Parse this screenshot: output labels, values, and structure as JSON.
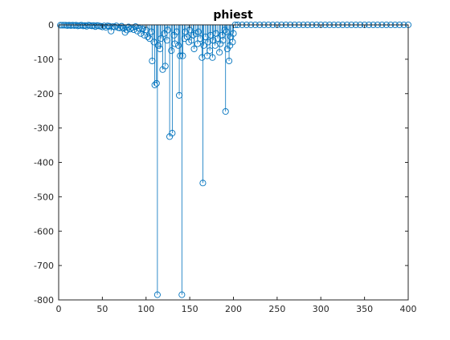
{
  "chart_data": {
    "type": "stem",
    "title": "phiest",
    "xlabel": "",
    "ylabel": "",
    "xlim": [
      0,
      400
    ],
    "ylim": [
      -800,
      0
    ],
    "xticks": [
      0,
      50,
      100,
      150,
      200,
      250,
      300,
      350,
      400
    ],
    "yticks": [
      0,
      -100,
      -200,
      -300,
      -400,
      -500,
      -600,
      -700,
      -800
    ],
    "grid": false,
    "colors": {
      "series": "#0072bd",
      "axes": "#262626"
    },
    "series": [
      {
        "points": [
          [
            2,
            -1
          ],
          [
            4,
            -1
          ],
          [
            6,
            -1
          ],
          [
            8,
            -1
          ],
          [
            10,
            -2
          ],
          [
            12,
            -1
          ],
          [
            14,
            -2
          ],
          [
            16,
            -1
          ],
          [
            18,
            -2
          ],
          [
            20,
            -1
          ],
          [
            22,
            -3
          ],
          [
            24,
            -2
          ],
          [
            26,
            -1
          ],
          [
            28,
            -3
          ],
          [
            30,
            -2
          ],
          [
            32,
            -4
          ],
          [
            34,
            -1
          ],
          [
            36,
            -2
          ],
          [
            38,
            -3
          ],
          [
            40,
            -2
          ],
          [
            42,
            -5
          ],
          [
            44,
            -2
          ],
          [
            46,
            -3
          ],
          [
            48,
            -4
          ],
          [
            50,
            -6
          ],
          [
            52,
            -3
          ],
          [
            54,
            -7
          ],
          [
            56,
            -3
          ],
          [
            58,
            -4
          ],
          [
            60,
            -18
          ],
          [
            62,
            -5
          ],
          [
            64,
            -6
          ],
          [
            66,
            -3
          ],
          [
            68,
            -8
          ],
          [
            70,
            -9
          ],
          [
            72,
            -4
          ],
          [
            74,
            -10
          ],
          [
            76,
            -22
          ],
          [
            78,
            -15
          ],
          [
            80,
            -6
          ],
          [
            82,
            -12
          ],
          [
            84,
            -8
          ],
          [
            86,
            -14
          ],
          [
            88,
            -5
          ],
          [
            90,
            -18
          ],
          [
            92,
            -10
          ],
          [
            94,
            -25
          ],
          [
            96,
            -12
          ],
          [
            98,
            -30
          ],
          [
            100,
            -15
          ],
          [
            102,
            -35
          ],
          [
            104,
            -40
          ],
          [
            106,
            -20
          ],
          [
            107,
            -105
          ],
          [
            109,
            -50
          ],
          [
            110,
            -175
          ],
          [
            112,
            -170
          ],
          [
            113,
            -785
          ],
          [
            114,
            -60
          ],
          [
            116,
            -70
          ],
          [
            117,
            -40
          ],
          [
            119,
            -130
          ],
          [
            121,
            -25
          ],
          [
            122,
            -120
          ],
          [
            124,
            -45
          ],
          [
            125,
            -15
          ],
          [
            127,
            -325
          ],
          [
            129,
            -75
          ],
          [
            130,
            -315
          ],
          [
            132,
            -30
          ],
          [
            133,
            -55
          ],
          [
            135,
            -20
          ],
          [
            137,
            -60
          ],
          [
            138,
            -205
          ],
          [
            139,
            -90
          ],
          [
            141,
            -785
          ],
          [
            142,
            -90
          ],
          [
            144,
            -40
          ],
          [
            145,
            -20
          ],
          [
            147,
            -35
          ],
          [
            149,
            -50
          ],
          [
            150,
            -15
          ],
          [
            152,
            -45
          ],
          [
            154,
            -30
          ],
          [
            155,
            -70
          ],
          [
            157,
            -25
          ],
          [
            159,
            -55
          ],
          [
            160,
            -20
          ],
          [
            162,
            -40
          ],
          [
            164,
            -95
          ],
          [
            165,
            -460
          ],
          [
            166,
            -60
          ],
          [
            168,
            -35
          ],
          [
            170,
            -90
          ],
          [
            171,
            -50
          ],
          [
            173,
            -75
          ],
          [
            174,
            -30
          ],
          [
            176,
            -95
          ],
          [
            177,
            -45
          ],
          [
            179,
            -60
          ],
          [
            180,
            -25
          ],
          [
            182,
            -40
          ],
          [
            184,
            -80
          ],
          [
            185,
            -55
          ],
          [
            187,
            -30
          ],
          [
            188,
            -45
          ],
          [
            190,
            -15
          ],
          [
            191,
            -252
          ],
          [
            192,
            -20
          ],
          [
            193,
            -70
          ],
          [
            195,
            -105
          ],
          [
            196,
            -60
          ],
          [
            197,
            -35
          ],
          [
            199,
            -50
          ],
          [
            200,
            -25
          ],
          [
            202,
            0
          ],
          [
            205,
            0
          ],
          [
            210,
            0
          ],
          [
            215,
            0
          ],
          [
            220,
            0
          ],
          [
            225,
            0
          ],
          [
            230,
            0
          ],
          [
            235,
            0
          ],
          [
            240,
            0
          ],
          [
            245,
            0
          ],
          [
            250,
            0
          ],
          [
            255,
            0
          ],
          [
            260,
            0
          ],
          [
            265,
            0
          ],
          [
            270,
            0
          ],
          [
            275,
            0
          ],
          [
            280,
            0
          ],
          [
            285,
            0
          ],
          [
            290,
            0
          ],
          [
            295,
            0
          ],
          [
            300,
            0
          ],
          [
            305,
            0
          ],
          [
            310,
            0
          ],
          [
            315,
            0
          ],
          [
            320,
            0
          ],
          [
            325,
            0
          ],
          [
            330,
            0
          ],
          [
            335,
            0
          ],
          [
            340,
            0
          ],
          [
            345,
            0
          ],
          [
            350,
            0
          ],
          [
            355,
            0
          ],
          [
            360,
            0
          ],
          [
            365,
            0
          ],
          [
            370,
            0
          ],
          [
            375,
            0
          ],
          [
            380,
            0
          ],
          [
            385,
            0
          ],
          [
            390,
            0
          ],
          [
            395,
            0
          ],
          [
            400,
            0
          ]
        ]
      }
    ]
  }
}
